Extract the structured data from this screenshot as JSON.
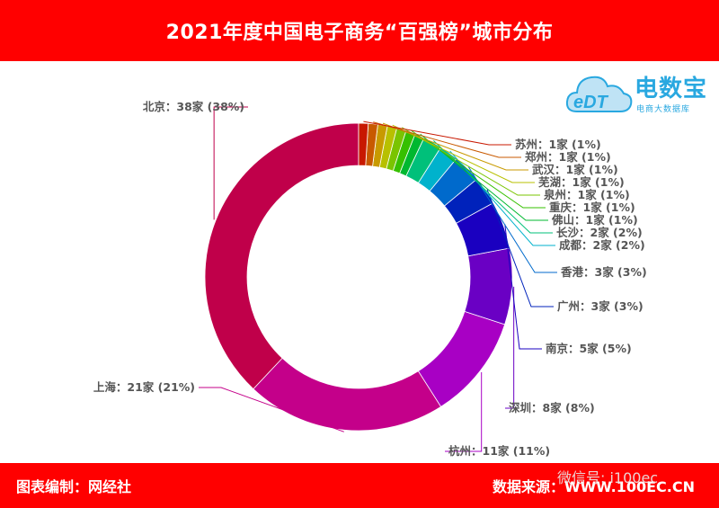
{
  "header": {
    "title": "2021年度中国电子商务“百强榜”城市分布"
  },
  "logo": {
    "brand": "电数宝",
    "tagline": "电商大数据库",
    "mark": "eDT"
  },
  "footer": {
    "credit": "图表编制：网经社",
    "source": "数据来源：WWW.100EC.CN",
    "wechat": "微信号: i100ec"
  },
  "chart_data": {
    "type": "pie",
    "donut": true,
    "title": "2021年度中国电子商务“百强榜”城市分布",
    "unit": "家",
    "slices": [
      {
        "name": "北京",
        "value": 38,
        "percent": "38%",
        "label": "北京：38家 (38%)",
        "color": "#c0004a"
      },
      {
        "name": "上海",
        "value": 21,
        "percent": "21%",
        "label": "上海：21家 (21%)",
        "color": "#c4008a"
      },
      {
        "name": "杭州",
        "value": 11,
        "percent": "11%",
        "label": "杭州：11家 (11%)",
        "color": "#a800c4"
      },
      {
        "name": "深圳",
        "value": 8,
        "percent": "8%",
        "label": "深圳：8家 (8%)",
        "color": "#6a00c4"
      },
      {
        "name": "南京",
        "value": 5,
        "percent": "5%",
        "label": "南京：5家 (5%)",
        "color": "#1a00c0"
      },
      {
        "name": "广州",
        "value": 3,
        "percent": "3%",
        "label": "广州：3家 (3%)",
        "color": "#0022bb"
      },
      {
        "name": "香港",
        "value": 3,
        "percent": "3%",
        "label": "香港：3家 (3%)",
        "color": "#006acc"
      },
      {
        "name": "成都",
        "value": 2,
        "percent": "2%",
        "label": "成都：2家 (2%)",
        "color": "#00b2cc"
      },
      {
        "name": "长沙",
        "value": 2,
        "percent": "2%",
        "label": "长沙：2家 (2%)",
        "color": "#00c07a"
      },
      {
        "name": "佛山",
        "value": 1,
        "percent": "1%",
        "label": "佛山：1家 (1%)",
        "color": "#00b830"
      },
      {
        "name": "重庆",
        "value": 1,
        "percent": "1%",
        "label": "重庆：1家 (1%)",
        "color": "#36c000"
      },
      {
        "name": "泉州",
        "value": 1,
        "percent": "1%",
        "label": "泉州：1家 (1%)",
        "color": "#7ac400"
      },
      {
        "name": "芜湖",
        "value": 1,
        "percent": "1%",
        "label": "芜湖：1家 (1%)",
        "color": "#b8c000"
      },
      {
        "name": "武汉",
        "value": 1,
        "percent": "1%",
        "label": "武汉：1家 (1%)",
        "color": "#c89a00"
      },
      {
        "name": "郑州",
        "value": 1,
        "percent": "1%",
        "label": "郑州：1家 (1%)",
        "color": "#c85a00"
      },
      {
        "name": "苏州",
        "value": 1,
        "percent": "1%",
        "label": "苏州：1家 (1%)",
        "color": "#c81800"
      }
    ]
  }
}
